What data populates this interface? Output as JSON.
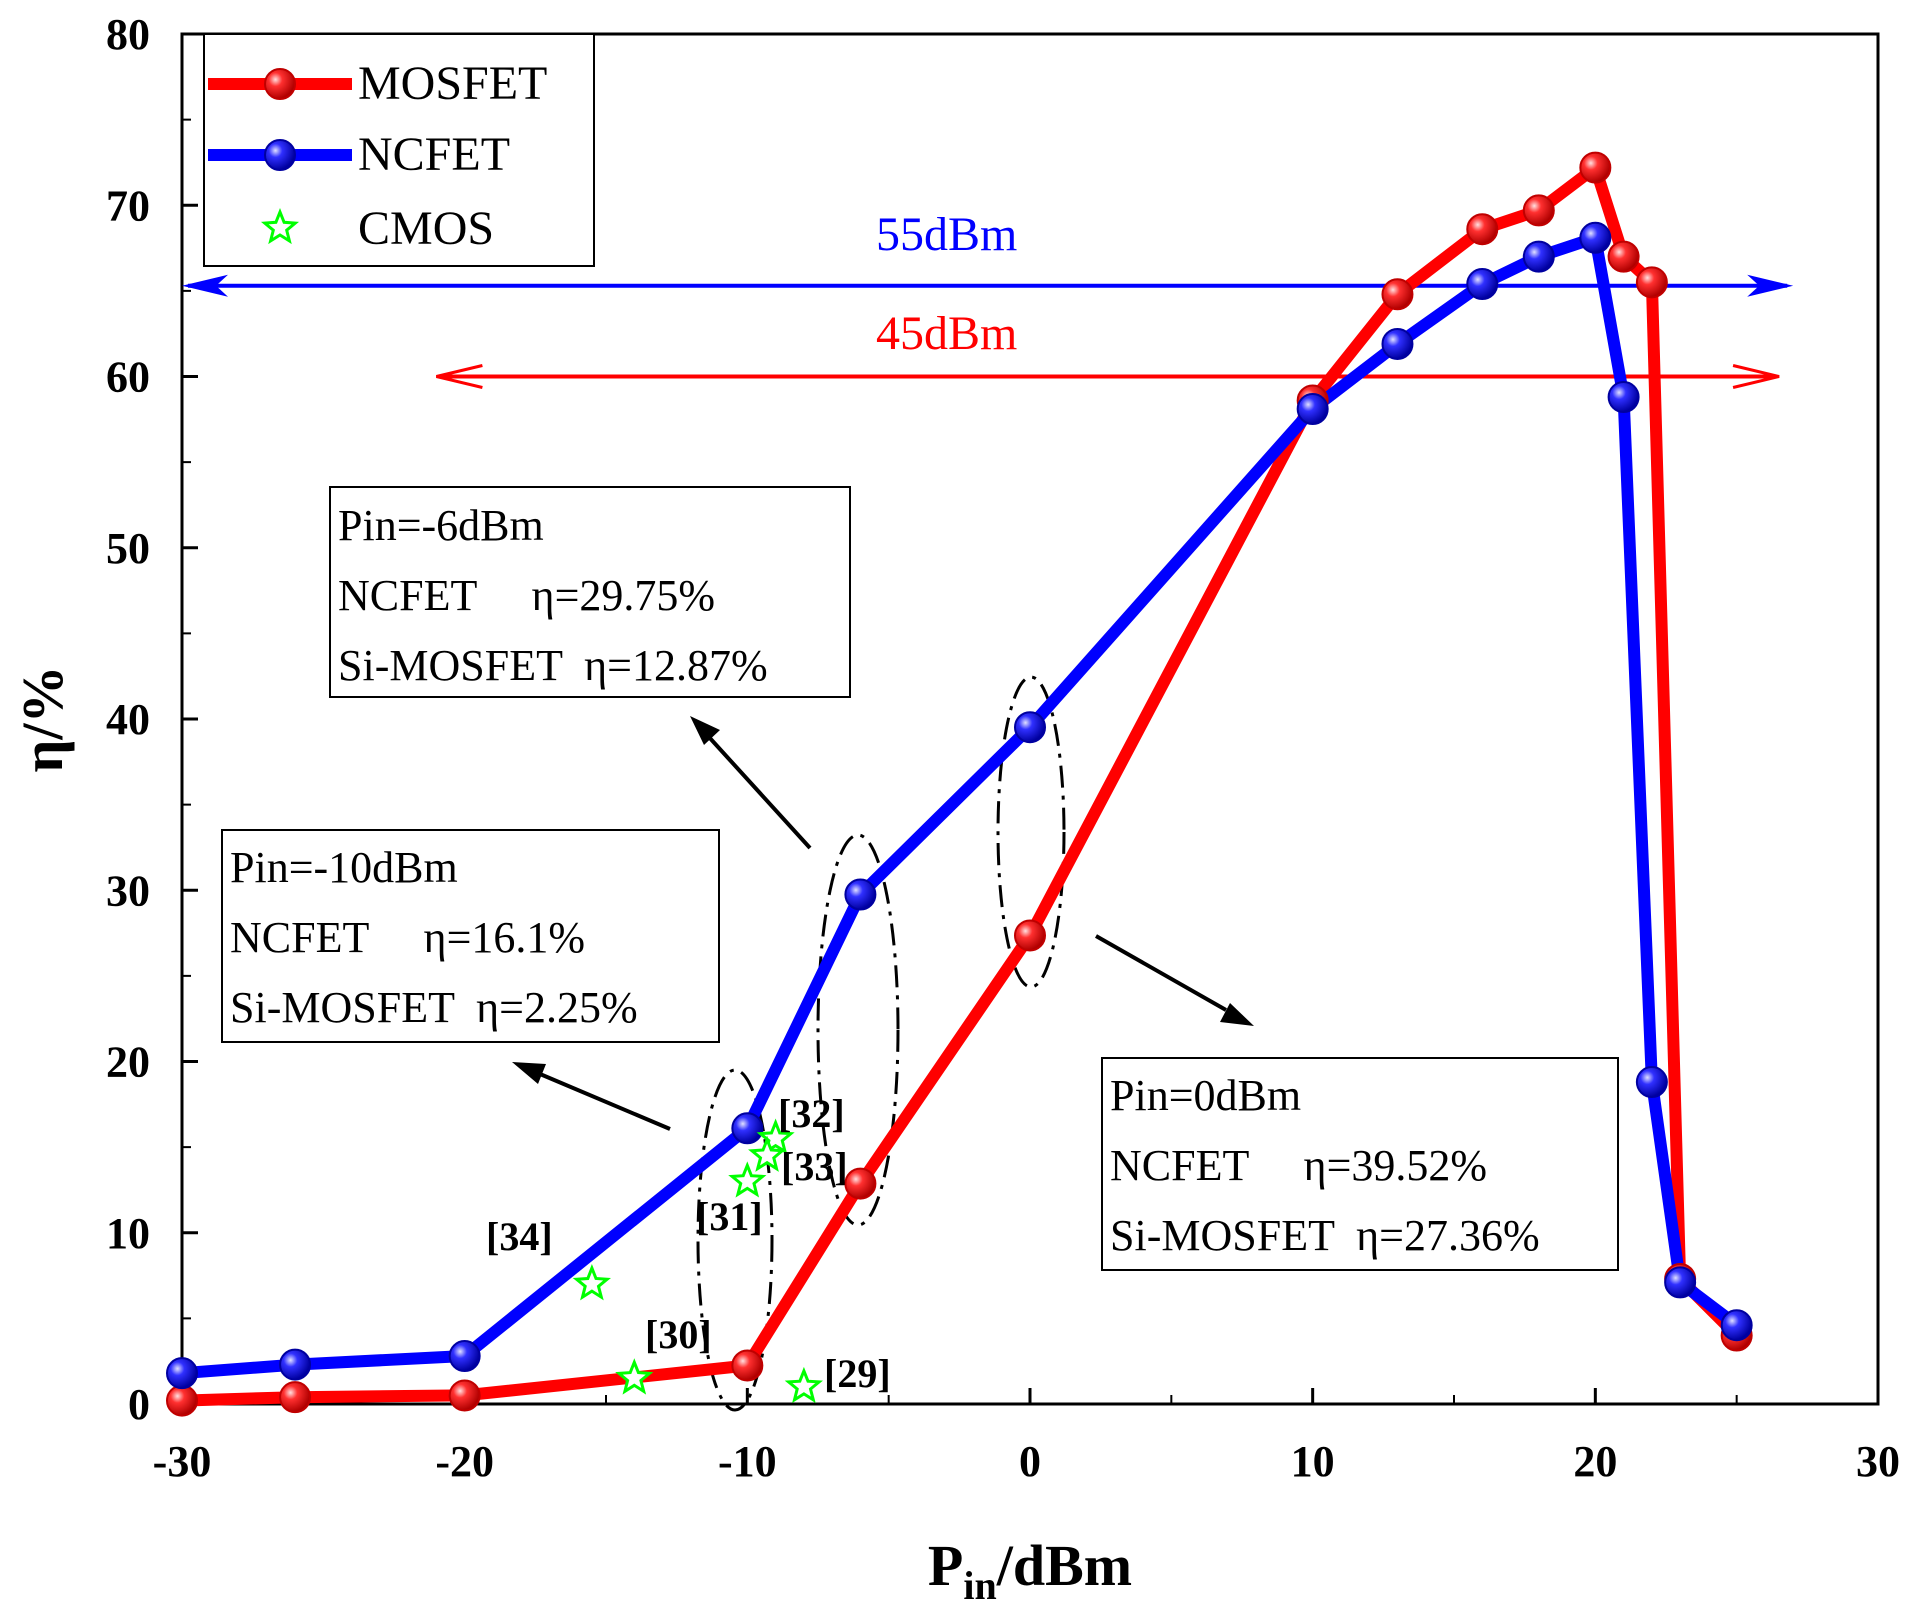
{
  "chart_data": {
    "type": "line",
    "xlabel_main": "P",
    "xlabel_sub": "in",
    "xlabel_unit": "/dBm",
    "ylabel": "η/%",
    "xlim": [
      -30,
      30
    ],
    "ylim": [
      0,
      80
    ],
    "x_ticks": [
      "-30",
      "-20",
      "-10",
      "0",
      "10",
      "20",
      "30"
    ],
    "y_ticks": [
      "0",
      "10",
      "20",
      "30",
      "40",
      "50",
      "60",
      "70",
      "80"
    ],
    "series": [
      {
        "name": "MOSFET",
        "color": "#ff0000",
        "points": [
          [
            -30,
            0.2
          ],
          [
            -26,
            0.4
          ],
          [
            -20,
            0.5
          ],
          [
            -10,
            2.25
          ],
          [
            -6,
            12.87
          ],
          [
            0,
            27.36
          ],
          [
            10,
            58.6
          ],
          [
            13,
            64.8
          ],
          [
            16,
            68.6
          ],
          [
            18,
            69.7
          ],
          [
            20,
            72.2
          ],
          [
            21,
            67.0
          ],
          [
            22,
            65.5
          ],
          [
            23,
            7.3
          ],
          [
            25,
            4.0
          ]
        ]
      },
      {
        "name": "NCFET",
        "color": "#0000ff",
        "points": [
          [
            -30,
            1.8
          ],
          [
            -26,
            2.3
          ],
          [
            -20,
            2.8
          ],
          [
            -10,
            16.1
          ],
          [
            -6,
            29.75
          ],
          [
            0,
            39.52
          ],
          [
            10,
            58.1
          ],
          [
            13,
            61.9
          ],
          [
            16,
            65.4
          ],
          [
            18,
            67.0
          ],
          [
            20,
            68.1
          ],
          [
            21,
            58.8
          ],
          [
            22,
            18.8
          ],
          [
            23,
            7.1
          ],
          [
            25,
            4.6
          ]
        ]
      }
    ],
    "cmos": {
      "name": "CMOS",
      "color": "#00ff00",
      "points": [
        {
          "x": -8,
          "y": 1.0,
          "ref": "[29]"
        },
        {
          "x": -14,
          "y": 1.5,
          "ref": "[30]"
        },
        {
          "x": -10,
          "y": 13.0,
          "ref": "[31]"
        },
        {
          "x": -9,
          "y": 15.5,
          "ref": "[32]"
        },
        {
          "x": -9.3,
          "y": 14.5,
          "ref": "[33]"
        },
        {
          "x": -15.5,
          "y": 7.0,
          "ref": "[34]"
        }
      ]
    },
    "ranges": [
      {
        "label": "55dBm",
        "color": "#0000ff",
        "y": 65.3,
        "x_from": -30,
        "x_to": 27
      },
      {
        "label": "45dBm",
        "color": "#ff0000",
        "y": 60,
        "x_from": -21,
        "x_to": 26.5
      }
    ],
    "annotations": [
      {
        "lines": [
          "Pin=-6dBm",
          "NCFET     η=29.75%",
          "Si-MOSFET  η=12.87%"
        ]
      },
      {
        "lines": [
          "Pin=-10dBm",
          "NCFET     η=16.1%",
          "Si-MOSFET  η=2.25%"
        ]
      },
      {
        "lines": [
          "Pin=0dBm",
          "NCFET     η=39.52%",
          "Si-MOSFET  η=27.36%"
        ]
      }
    ],
    "legend": [
      "MOSFET",
      "NCFET",
      "CMOS"
    ]
  }
}
